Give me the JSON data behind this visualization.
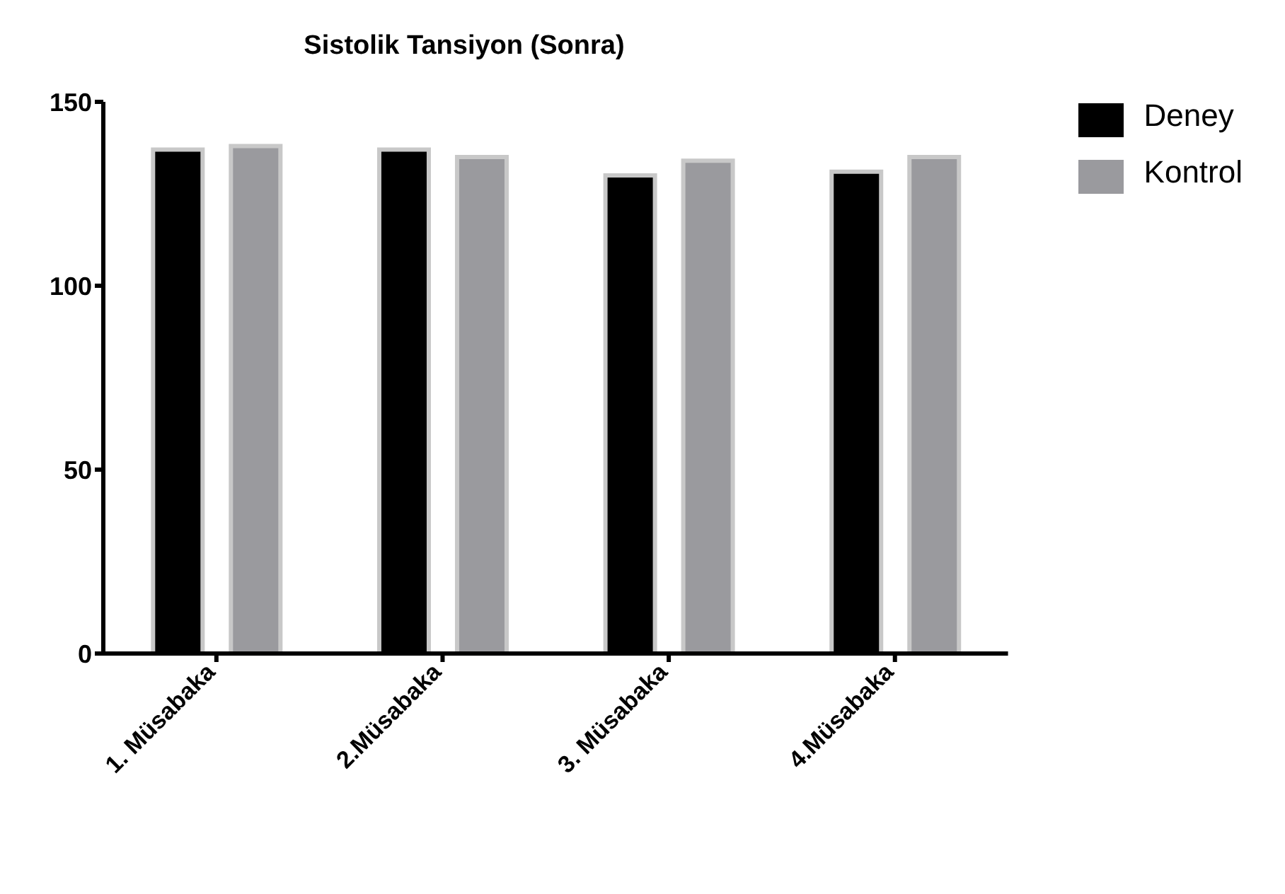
{
  "chart_data": {
    "type": "bar",
    "title": "Sistolik Tansiyon (Sonra)",
    "categories": [
      "1. Müsabaka",
      "2.Müsabaka",
      "3. Müsabaka",
      "4.Müsabaka"
    ],
    "series": [
      {
        "name": "Deney",
        "color": "#000000",
        "values": [
          137,
          137,
          130,
          131
        ]
      },
      {
        "name": "Kontrol",
        "color": "#9a9a9e",
        "values": [
          138,
          135,
          134,
          135
        ]
      }
    ],
    "ylim": [
      0,
      150
    ],
    "yticks": [
      0,
      50,
      100,
      150
    ],
    "grid": false,
    "legend": "top right"
  }
}
